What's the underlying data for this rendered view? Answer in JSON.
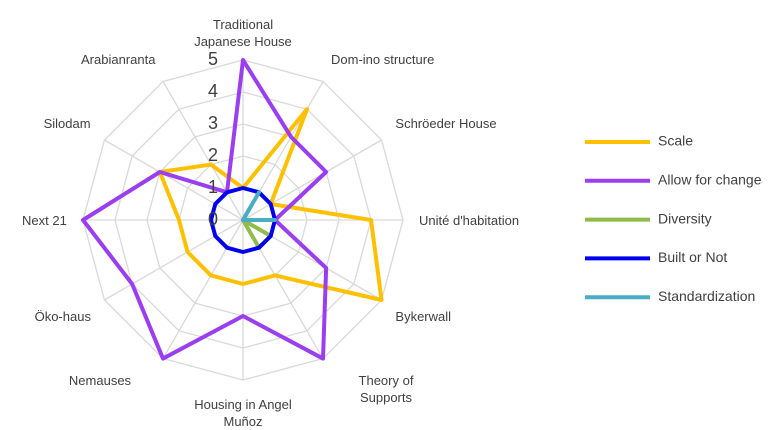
{
  "chart_data": {
    "type": "radar",
    "categories": [
      "Traditional Japanese House",
      "Dom-ino structure",
      "Schröeder House",
      "Unité d'habitation",
      "Bykerwall",
      "Theory of Supports",
      "Housing in Angel Muñoz",
      "Nemauses",
      "Öko-haus",
      "Next 21",
      "Silodam",
      "Arabianranta"
    ],
    "series": [
      {
        "name": "Scale",
        "color": "#ffc000",
        "values": [
          1,
          4,
          1,
          4,
          5,
          2,
          2,
          2,
          2,
          2,
          3,
          2
        ]
      },
      {
        "name": "Allow for change",
        "color": "#9b3df0",
        "values": [
          5,
          3,
          3,
          1,
          3,
          5,
          3,
          5,
          4,
          5,
          3,
          1
        ]
      },
      {
        "name": "Diversity",
        "color": "#8fbc4a",
        "values": [
          0,
          0.5,
          0,
          0,
          1,
          1,
          0,
          0,
          0,
          0,
          0,
          0
        ]
      },
      {
        "name": "Built or Not",
        "color": "#0000ee",
        "values": [
          1,
          1,
          1,
          1,
          1,
          1,
          1,
          1,
          1,
          1,
          1,
          1
        ]
      },
      {
        "name": "Standardization",
        "color": "#4bacc6",
        "values": [
          0,
          1,
          0,
          1,
          0,
          0,
          0,
          0,
          0,
          0,
          0,
          0
        ]
      }
    ],
    "ylim": [
      0,
      5
    ],
    "yticks": [
      0,
      1,
      2,
      3,
      4,
      5
    ],
    "grid": true,
    "legend": "right"
  }
}
